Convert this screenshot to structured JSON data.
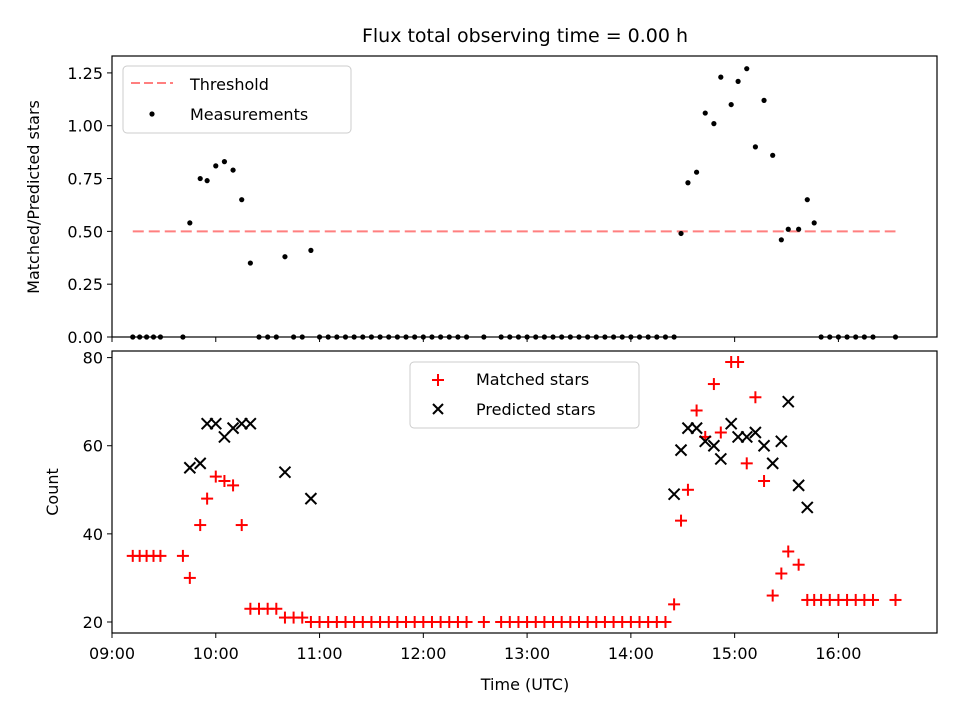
{
  "chart_data": [
    {
      "type": "scatter",
      "title": "Flux total observing time = 0.00 h",
      "ylabel": "Matched/Predicted stars",
      "xlabel": "",
      "xlim": [
        "09:00",
        "16:57"
      ],
      "ylim": [
        0,
        1.33
      ],
      "yticks": [
        "0.00",
        "0.25",
        "0.50",
        "0.75",
        "1.00",
        "1.25"
      ],
      "legend_position": "top-left",
      "threshold": {
        "name": "Threshold",
        "value": 0.5,
        "x_range": [
          "09:12",
          "16:33"
        ],
        "color": "#ff7f7f",
        "style": "dashed"
      },
      "series": [
        {
          "name": "Measurements",
          "color": "#000000",
          "marker": "dot",
          "points": [
            [
              "09:12",
              0
            ],
            [
              "09:16",
              0
            ],
            [
              "09:20",
              0
            ],
            [
              "09:24",
              0
            ],
            [
              "09:28",
              0
            ],
            [
              "09:41",
              0
            ],
            [
              "09:45",
              0.54
            ],
            [
              "09:51",
              0.75
            ],
            [
              "09:55",
              0.74
            ],
            [
              "10:00",
              0.81
            ],
            [
              "10:05",
              0.83
            ],
            [
              "10:10",
              0.79
            ],
            [
              "10:15",
              0.65
            ],
            [
              "10:20",
              0.35
            ],
            [
              "10:25",
              0
            ],
            [
              "10:30",
              0
            ],
            [
              "10:35",
              0
            ],
            [
              "10:40",
              0.38
            ],
            [
              "10:45",
              0
            ],
            [
              "10:50",
              0
            ],
            [
              "10:55",
              0.41
            ],
            [
              "11:00",
              0
            ],
            [
              "11:05",
              0
            ],
            [
              "11:10",
              0
            ],
            [
              "11:15",
              0
            ],
            [
              "11:20",
              0
            ],
            [
              "11:25",
              0
            ],
            [
              "11:30",
              0
            ],
            [
              "11:35",
              0
            ],
            [
              "11:40",
              0
            ],
            [
              "11:45",
              0
            ],
            [
              "11:50",
              0
            ],
            [
              "11:55",
              0
            ],
            [
              "12:00",
              0
            ],
            [
              "12:05",
              0
            ],
            [
              "12:10",
              0
            ],
            [
              "12:15",
              0
            ],
            [
              "12:20",
              0
            ],
            [
              "12:25",
              0
            ],
            [
              "12:35",
              0
            ],
            [
              "12:45",
              0
            ],
            [
              "12:50",
              0
            ],
            [
              "12:55",
              0
            ],
            [
              "13:00",
              0
            ],
            [
              "13:05",
              0
            ],
            [
              "13:10",
              0
            ],
            [
              "13:15",
              0
            ],
            [
              "13:20",
              0
            ],
            [
              "13:25",
              0
            ],
            [
              "13:30",
              0
            ],
            [
              "13:35",
              0
            ],
            [
              "13:40",
              0
            ],
            [
              "13:45",
              0
            ],
            [
              "13:50",
              0
            ],
            [
              "13:55",
              0
            ],
            [
              "14:00",
              0
            ],
            [
              "14:05",
              0
            ],
            [
              "14:10",
              0
            ],
            [
              "14:15",
              0
            ],
            [
              "14:20",
              0
            ],
            [
              "14:25",
              0
            ],
            [
              "14:29",
              0.49
            ],
            [
              "14:33",
              0.73
            ],
            [
              "14:38",
              0.78
            ],
            [
              "14:43",
              1.06
            ],
            [
              "14:48",
              1.01
            ],
            [
              "14:52",
              1.23
            ],
            [
              "14:58",
              1.1
            ],
            [
              "15:02",
              1.21
            ],
            [
              "15:07",
              1.27
            ],
            [
              "15:12",
              0.9
            ],
            [
              "15:17",
              1.12
            ],
            [
              "15:22",
              0.86
            ],
            [
              "15:27",
              0.46
            ],
            [
              "15:31",
              0.51
            ],
            [
              "15:37",
              0.51
            ],
            [
              "15:42",
              0.65
            ],
            [
              "15:46",
              0.54
            ],
            [
              "15:50",
              0
            ],
            [
              "15:55",
              0
            ],
            [
              "16:00",
              0
            ],
            [
              "16:05",
              0
            ],
            [
              "16:10",
              0
            ],
            [
              "16:15",
              0
            ],
            [
              "16:20",
              0
            ],
            [
              "16:33",
              0
            ]
          ]
        }
      ],
      "grid": false
    },
    {
      "type": "scatter",
      "title": "",
      "xlabel": "Time (UTC)",
      "ylabel": "Count",
      "xlim": [
        "09:00",
        "16:57"
      ],
      "ylim": [
        17.5,
        81.5
      ],
      "xticks": [
        "09:00",
        "10:00",
        "11:00",
        "12:00",
        "13:00",
        "14:00",
        "15:00",
        "16:00"
      ],
      "yticks": [
        "20",
        "40",
        "60",
        "80"
      ],
      "legend_position": "top-center",
      "series": [
        {
          "name": "Matched stars",
          "color": "#ff0000",
          "marker": "plus",
          "points": [
            [
              "09:12",
              35
            ],
            [
              "09:16",
              35
            ],
            [
              "09:20",
              35
            ],
            [
              "09:24",
              35
            ],
            [
              "09:28",
              35
            ],
            [
              "09:41",
              35
            ],
            [
              "09:45",
              30
            ],
            [
              "09:51",
              42
            ],
            [
              "09:55",
              48
            ],
            [
              "10:00",
              53
            ],
            [
              "10:05",
              52
            ],
            [
              "10:10",
              51
            ],
            [
              "10:15",
              42
            ],
            [
              "10:20",
              23
            ],
            [
              "10:25",
              23
            ],
            [
              "10:30",
              23
            ],
            [
              "10:35",
              23
            ],
            [
              "10:40",
              21
            ],
            [
              "10:45",
              21
            ],
            [
              "10:50",
              21
            ],
            [
              "10:55",
              20
            ],
            [
              "11:00",
              20
            ],
            [
              "11:05",
              20
            ],
            [
              "11:10",
              20
            ],
            [
              "11:15",
              20
            ],
            [
              "11:20",
              20
            ],
            [
              "11:25",
              20
            ],
            [
              "11:30",
              20
            ],
            [
              "11:35",
              20
            ],
            [
              "11:40",
              20
            ],
            [
              "11:45",
              20
            ],
            [
              "11:50",
              20
            ],
            [
              "11:55",
              20
            ],
            [
              "12:00",
              20
            ],
            [
              "12:05",
              20
            ],
            [
              "12:10",
              20
            ],
            [
              "12:15",
              20
            ],
            [
              "12:20",
              20
            ],
            [
              "12:25",
              20
            ],
            [
              "12:35",
              20
            ],
            [
              "12:45",
              20
            ],
            [
              "12:50",
              20
            ],
            [
              "12:55",
              20
            ],
            [
              "13:00",
              20
            ],
            [
              "13:05",
              20
            ],
            [
              "13:10",
              20
            ],
            [
              "13:15",
              20
            ],
            [
              "13:20",
              20
            ],
            [
              "13:25",
              20
            ],
            [
              "13:30",
              20
            ],
            [
              "13:35",
              20
            ],
            [
              "13:40",
              20
            ],
            [
              "13:45",
              20
            ],
            [
              "13:50",
              20
            ],
            [
              "13:55",
              20
            ],
            [
              "14:00",
              20
            ],
            [
              "14:05",
              20
            ],
            [
              "14:10",
              20
            ],
            [
              "14:15",
              20
            ],
            [
              "14:20",
              20
            ],
            [
              "14:25",
              24
            ],
            [
              "14:29",
              43
            ],
            [
              "14:33",
              50
            ],
            [
              "14:38",
              68
            ],
            [
              "14:43",
              62
            ],
            [
              "14:48",
              74
            ],
            [
              "14:52",
              63
            ],
            [
              "14:58",
              79
            ],
            [
              "15:02",
              79
            ],
            [
              "15:07",
              56
            ],
            [
              "15:12",
              71
            ],
            [
              "15:17",
              52
            ],
            [
              "15:22",
              26
            ],
            [
              "15:27",
              31
            ],
            [
              "15:31",
              36
            ],
            [
              "15:37",
              33
            ],
            [
              "15:42",
              25
            ],
            [
              "15:46",
              25
            ],
            [
              "15:50",
              25
            ],
            [
              "15:55",
              25
            ],
            [
              "16:00",
              25
            ],
            [
              "16:05",
              25
            ],
            [
              "16:10",
              25
            ],
            [
              "16:15",
              25
            ],
            [
              "16:20",
              25
            ],
            [
              "16:33",
              25
            ]
          ]
        },
        {
          "name": "Predicted stars",
          "color": "#000000",
          "marker": "x",
          "points": [
            [
              "09:45",
              55
            ],
            [
              "09:51",
              56
            ],
            [
              "09:55",
              65
            ],
            [
              "10:00",
              65
            ],
            [
              "10:05",
              62
            ],
            [
              "10:10",
              64
            ],
            [
              "10:15",
              65
            ],
            [
              "10:20",
              65
            ],
            [
              "10:40",
              54
            ],
            [
              "10:55",
              48
            ],
            [
              "14:25",
              49
            ],
            [
              "14:29",
              59
            ],
            [
              "14:33",
              64
            ],
            [
              "14:38",
              64
            ],
            [
              "14:43",
              61
            ],
            [
              "14:48",
              60
            ],
            [
              "14:52",
              57
            ],
            [
              "14:58",
              65
            ],
            [
              "15:02",
              62
            ],
            [
              "15:07",
              62
            ],
            [
              "15:12",
              63
            ],
            [
              "15:17",
              60
            ],
            [
              "15:22",
              56
            ],
            [
              "15:27",
              61
            ],
            [
              "15:31",
              70
            ],
            [
              "15:37",
              51
            ],
            [
              "15:42",
              46
            ]
          ]
        }
      ],
      "grid": false
    }
  ]
}
